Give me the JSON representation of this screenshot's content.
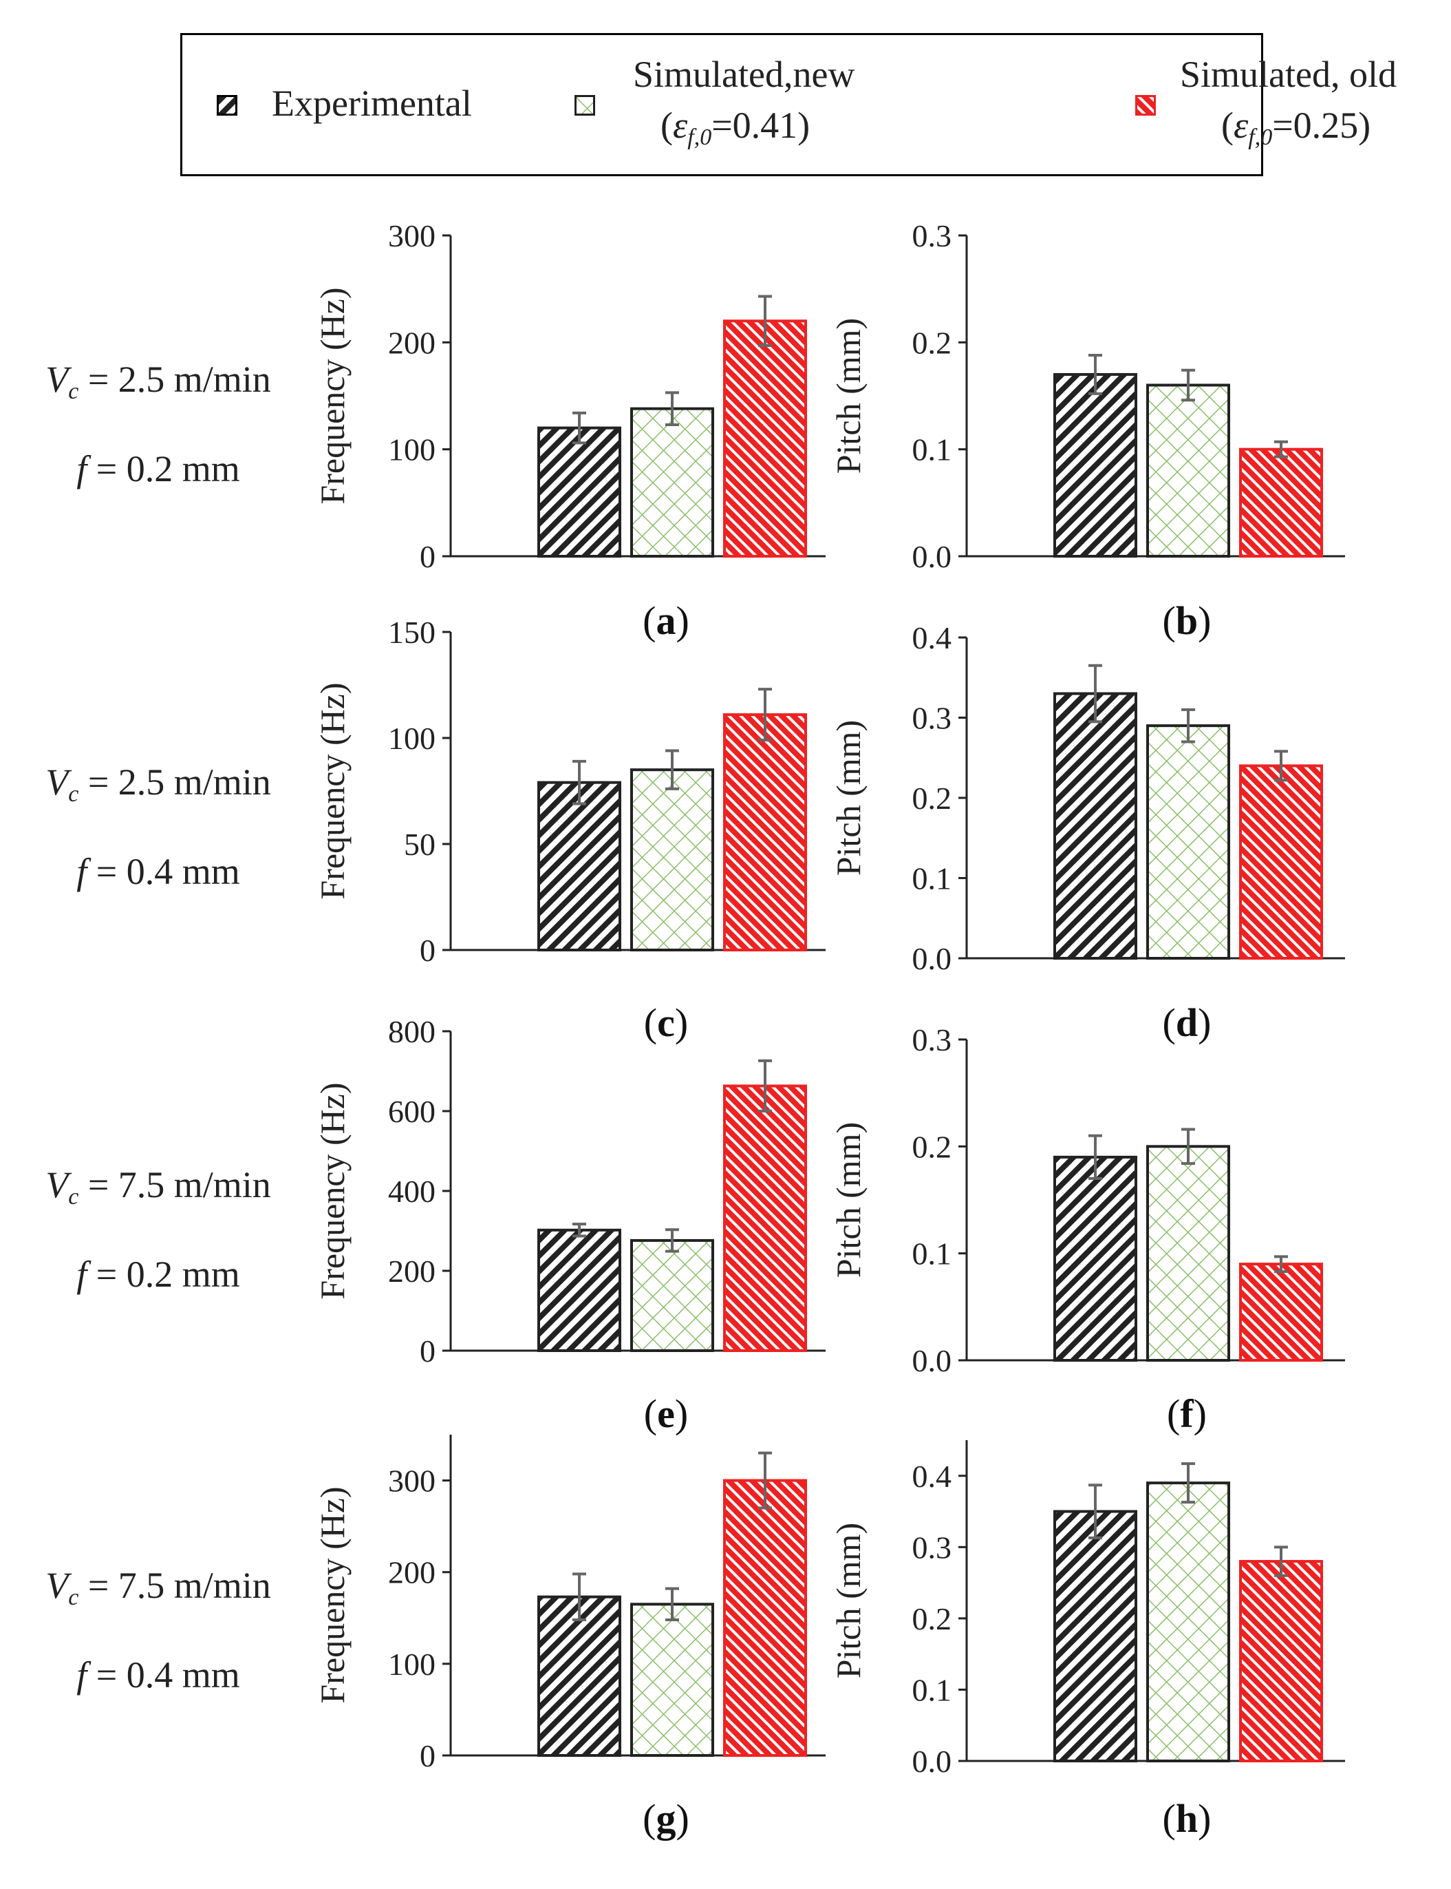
{
  "legend": {
    "experimental": "Experimental",
    "sim_new_line1": "Simulated,new",
    "sim_new_val": "=0.41)",
    "sim_old_line1": "Simulated, old",
    "sim_old_val": "=0.25)",
    "eps_symbol": "ε",
    "eps_sub": "f,0"
  },
  "rows": [
    {
      "vc": "V",
      "vc_sub": "c",
      "vc_text": " = 2.5 m/min",
      "f_sym": "f",
      "f_text": " = 0.2 mm"
    },
    {
      "vc": "V",
      "vc_sub": "c",
      "vc_text": " = 2.5 m/min",
      "f_sym": "f",
      "f_text": " = 0.4 mm"
    },
    {
      "vc": "V",
      "vc_sub": "c",
      "vc_text": " = 7.5 m/min",
      "f_sym": "f",
      "f_text": " = 0.2 mm"
    },
    {
      "vc": "V",
      "vc_sub": "c",
      "vc_text": " = 7.5 m/min",
      "f_sym": "f",
      "f_text": " = 0.4 mm"
    }
  ],
  "colors": {
    "experimental": "#222222",
    "sim_new": "#8cbf6a",
    "sim_old": "#ee2222",
    "error_bar": "#666666"
  },
  "chart_data": [
    {
      "panel": "a",
      "type": "bar",
      "ylabel": "Frequency (Hz)",
      "ylim": [
        0,
        300
      ],
      "yticks": [
        "0",
        "100",
        "200",
        "300"
      ],
      "series": [
        {
          "name": "Experimental",
          "values": [
            120
          ],
          "err": [
            14
          ]
        },
        {
          "name": "Simulated,new",
          "values": [
            138
          ],
          "err": [
            15
          ]
        },
        {
          "name": "Simulated, old",
          "values": [
            220
          ],
          "err": [
            23
          ]
        }
      ]
    },
    {
      "panel": "b",
      "type": "bar",
      "ylabel": "Pitch (mm)",
      "ylim": [
        0,
        0.3
      ],
      "yticks": [
        "0.0",
        "0.1",
        "0.2",
        "0.3"
      ],
      "series": [
        {
          "name": "Experimental",
          "values": [
            0.17
          ],
          "err": [
            0.018
          ]
        },
        {
          "name": "Simulated,new",
          "values": [
            0.16
          ],
          "err": [
            0.014
          ]
        },
        {
          "name": "Simulated, old",
          "values": [
            0.1
          ],
          "err": [
            0.007
          ]
        }
      ]
    },
    {
      "panel": "c",
      "type": "bar",
      "ylabel": "Frequency (Hz)",
      "ylim": [
        0,
        150
      ],
      "yticks": [
        "0",
        "50",
        "100",
        "150"
      ],
      "series": [
        {
          "name": "Experimental",
          "values": [
            79
          ],
          "err": [
            10
          ]
        },
        {
          "name": "Simulated,new",
          "values": [
            85
          ],
          "err": [
            9
          ]
        },
        {
          "name": "Simulated, old",
          "values": [
            111
          ],
          "err": [
            12
          ]
        }
      ]
    },
    {
      "panel": "d",
      "type": "bar",
      "ylabel": "Pitch (mm)",
      "ylim": [
        0,
        0.4
      ],
      "yticks": [
        "0.0",
        "0.1",
        "0.2",
        "0.3",
        "0.4"
      ],
      "series": [
        {
          "name": "Experimental",
          "values": [
            0.33
          ],
          "err": [
            0.035
          ]
        },
        {
          "name": "Simulated,new",
          "values": [
            0.29
          ],
          "err": [
            0.02
          ]
        },
        {
          "name": "Simulated, old",
          "values": [
            0.24
          ],
          "err": [
            0.018
          ]
        }
      ]
    },
    {
      "panel": "e",
      "type": "bar",
      "ylabel": "Frequency (Hz)",
      "ylim": [
        0,
        800
      ],
      "yticks": [
        "0",
        "200",
        "400",
        "600",
        "800"
      ],
      "series": [
        {
          "name": "Experimental",
          "values": [
            302
          ],
          "err": [
            15
          ]
        },
        {
          "name": "Simulated,new",
          "values": [
            276
          ],
          "err": [
            27
          ]
        },
        {
          "name": "Simulated, old",
          "values": [
            663
          ],
          "err": [
            63
          ]
        }
      ]
    },
    {
      "panel": "f",
      "type": "bar",
      "ylabel": "Pitch (mm)",
      "ylim": [
        0,
        0.3
      ],
      "yticks": [
        "0.0",
        "0.1",
        "0.2",
        "0.3"
      ],
      "series": [
        {
          "name": "Experimental",
          "values": [
            0.19
          ],
          "err": [
            0.02
          ]
        },
        {
          "name": "Simulated,new",
          "values": [
            0.2
          ],
          "err": [
            0.016
          ]
        },
        {
          "name": "Simulated, old",
          "values": [
            0.09
          ],
          "err": [
            0.007
          ]
        }
      ]
    },
    {
      "panel": "g",
      "type": "bar",
      "ylabel": "Frequency (Hz)",
      "ylim": [
        0,
        350
      ],
      "yticks": [
        "0",
        "100",
        "200",
        "300"
      ],
      "series": [
        {
          "name": "Experimental",
          "values": [
            173
          ],
          "err": [
            25
          ]
        },
        {
          "name": "Simulated,new",
          "values": [
            165
          ],
          "err": [
            17
          ]
        },
        {
          "name": "Simulated, old",
          "values": [
            300
          ],
          "err": [
            30
          ]
        }
      ]
    },
    {
      "panel": "h",
      "type": "bar",
      "ylabel": "Pitch (mm)",
      "ylim": [
        0,
        0.45
      ],
      "yticks": [
        "0.0",
        "0.1",
        "0.2",
        "0.3",
        "0.4"
      ],
      "series": [
        {
          "name": "Experimental",
          "values": [
            0.35
          ],
          "err": [
            0.037
          ]
        },
        {
          "name": "Simulated,new",
          "values": [
            0.39
          ],
          "err": [
            0.027
          ]
        },
        {
          "name": "Simulated, old",
          "values": [
            0.28
          ],
          "err": [
            0.02
          ]
        }
      ]
    }
  ],
  "panel_letters": [
    "a",
    "b",
    "c",
    "d",
    "e",
    "f",
    "g",
    "h"
  ]
}
